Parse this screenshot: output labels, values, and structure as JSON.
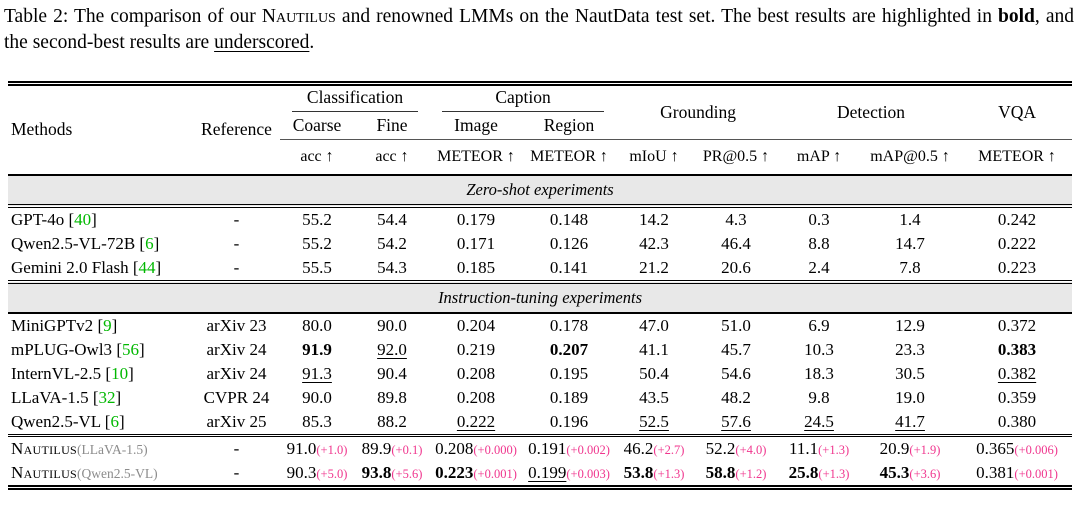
{
  "caption": {
    "part1": "Table 2: The comparison of our ",
    "nautilus": "Nautilus",
    "part2": " and renowned LMMs on the NautData test set. The best results are highlighted in ",
    "bold_word": "bold",
    "part3": ", and the second-best results are ",
    "underscored_word": "underscored",
    "part4": "."
  },
  "colors": {
    "citation_green": "#00b800",
    "delta_pink": "#f0368e",
    "band_gray": "#e8e8e8",
    "suffix_gray": "#8c8c8c"
  },
  "table": {
    "header": {
      "methods": "Methods",
      "reference": "Reference",
      "groups": [
        {
          "label": "Classification",
          "subs": [
            "Coarse",
            "Fine"
          ]
        },
        {
          "label": "Caption",
          "subs": [
            "Image",
            "Region"
          ]
        },
        {
          "label": "Grounding"
        },
        {
          "label": "Detection"
        },
        {
          "label": "VQA"
        }
      ],
      "metrics": [
        "acc ↑",
        "acc ↑",
        "METEOR ↑",
        "METEOR ↑",
        "mIoU ↑",
        "PR@0.5 ↑",
        "mAP ↑",
        "mAP@0.5 ↑",
        "METEOR ↑"
      ]
    },
    "sections": [
      {
        "band": "Zero-shot experiments",
        "rows": [
          {
            "name": "GPT-4o",
            "cite": "40",
            "ref": "-",
            "cells": [
              {
                "v": "55.2"
              },
              {
                "v": "54.4"
              },
              {
                "v": "0.179"
              },
              {
                "v": "0.148"
              },
              {
                "v": "14.2"
              },
              {
                "v": "4.3"
              },
              {
                "v": "0.3"
              },
              {
                "v": "1.4"
              },
              {
                "v": "0.242"
              }
            ]
          },
          {
            "name": "Qwen2.5-VL-72B",
            "cite": "6",
            "ref": "-",
            "cells": [
              {
                "v": "55.2"
              },
              {
                "v": "54.2"
              },
              {
                "v": "0.171"
              },
              {
                "v": "0.126"
              },
              {
                "v": "42.3"
              },
              {
                "v": "46.4"
              },
              {
                "v": "8.8"
              },
              {
                "v": "14.7"
              },
              {
                "v": "0.222"
              }
            ]
          },
          {
            "name": "Gemini 2.0 Flash",
            "cite": "44",
            "ref": "-",
            "cells": [
              {
                "v": "55.5"
              },
              {
                "v": "54.3"
              },
              {
                "v": "0.185"
              },
              {
                "v": "0.141"
              },
              {
                "v": "21.2"
              },
              {
                "v": "20.6"
              },
              {
                "v": "2.4"
              },
              {
                "v": "7.8"
              },
              {
                "v": "0.223"
              }
            ]
          }
        ]
      },
      {
        "band": "Instruction-tuning experiments",
        "rows": [
          {
            "name": "MiniGPTv2",
            "cite": "9",
            "ref": "arXiv 23",
            "cells": [
              {
                "v": "80.0"
              },
              {
                "v": "90.0"
              },
              {
                "v": "0.204"
              },
              {
                "v": "0.178"
              },
              {
                "v": "47.0"
              },
              {
                "v": "51.0"
              },
              {
                "v": "6.9"
              },
              {
                "v": "12.9"
              },
              {
                "v": "0.372"
              }
            ]
          },
          {
            "name": "mPLUG-Owl3",
            "cite": "56",
            "ref": "arXiv 24",
            "cells": [
              {
                "v": "91.9",
                "b": true
              },
              {
                "v": "92.0",
                "u": true
              },
              {
                "v": "0.219"
              },
              {
                "v": "0.207",
                "b": true
              },
              {
                "v": "41.1"
              },
              {
                "v": "45.7"
              },
              {
                "v": "10.3"
              },
              {
                "v": "23.3"
              },
              {
                "v": "0.383",
                "b": true
              }
            ]
          },
          {
            "name": "InternVL-2.5",
            "cite": "10",
            "ref": "arXiv 24",
            "cells": [
              {
                "v": "91.3",
                "u": true
              },
              {
                "v": "90.4"
              },
              {
                "v": "0.208"
              },
              {
                "v": "0.195"
              },
              {
                "v": "50.4"
              },
              {
                "v": "54.6"
              },
              {
                "v": "18.3"
              },
              {
                "v": "30.5"
              },
              {
                "v": "0.382",
                "u": true
              }
            ]
          },
          {
            "name": "LLaVA-1.5",
            "cite": "32",
            "ref": "CVPR 24",
            "cells": [
              {
                "v": "90.0"
              },
              {
                "v": "89.8"
              },
              {
                "v": "0.208"
              },
              {
                "v": "0.189"
              },
              {
                "v": "43.5"
              },
              {
                "v": "48.2"
              },
              {
                "v": "9.8"
              },
              {
                "v": "19.0"
              },
              {
                "v": "0.359"
              }
            ]
          },
          {
            "name": "Qwen2.5-VL",
            "cite": "6",
            "ref": "arXiv 25",
            "cells": [
              {
                "v": "85.3"
              },
              {
                "v": "88.2"
              },
              {
                "v": "0.222",
                "u": true
              },
              {
                "v": "0.196"
              },
              {
                "v": "52.5",
                "u": true
              },
              {
                "v": "57.6",
                "u": true
              },
              {
                "v": "24.5",
                "u": true
              },
              {
                "v": "41.7",
                "u": true
              },
              {
                "v": "0.380"
              }
            ]
          }
        ]
      },
      {
        "band": null,
        "rows": [
          {
            "sc": true,
            "name": "Nautilus",
            "suffix": "(LLaVA-1.5)",
            "ref": "-",
            "cells": [
              {
                "v": "91.0",
                "d": "(+1.0)"
              },
              {
                "v": "89.9",
                "d": "(+0.1)"
              },
              {
                "v": "0.208",
                "d": "(+0.000)"
              },
              {
                "v": "0.191",
                "d": "(+0.002)"
              },
              {
                "v": "46.2",
                "d": "(+2.7)"
              },
              {
                "v": "52.2",
                "d": "(+4.0)"
              },
              {
                "v": "11.1",
                "d": "(+1.3)"
              },
              {
                "v": "20.9",
                "d": "(+1.9)"
              },
              {
                "v": "0.365",
                "d": "(+0.006)"
              }
            ]
          },
          {
            "sc": true,
            "name": "Nautilus",
            "suffix": "(Qwen2.5-VL)",
            "ref": "-",
            "cells": [
              {
                "v": "90.3",
                "d": "(+5.0)"
              },
              {
                "v": "93.8",
                "b": true,
                "d": "(+5.6)"
              },
              {
                "v": "0.223",
                "b": true,
                "d": "(+0.001)"
              },
              {
                "v": "0.199",
                "u": true,
                "d": "(+0.003)"
              },
              {
                "v": "53.8",
                "b": true,
                "d": "(+1.3)"
              },
              {
                "v": "58.8",
                "b": true,
                "d": "(+1.2)"
              },
              {
                "v": "25.8",
                "b": true,
                "d": "(+1.3)"
              },
              {
                "v": "45.3",
                "b": true,
                "d": "(+3.6)"
              },
              {
                "v": "0.381",
                "d": "(+0.001)"
              }
            ]
          }
        ]
      }
    ]
  }
}
